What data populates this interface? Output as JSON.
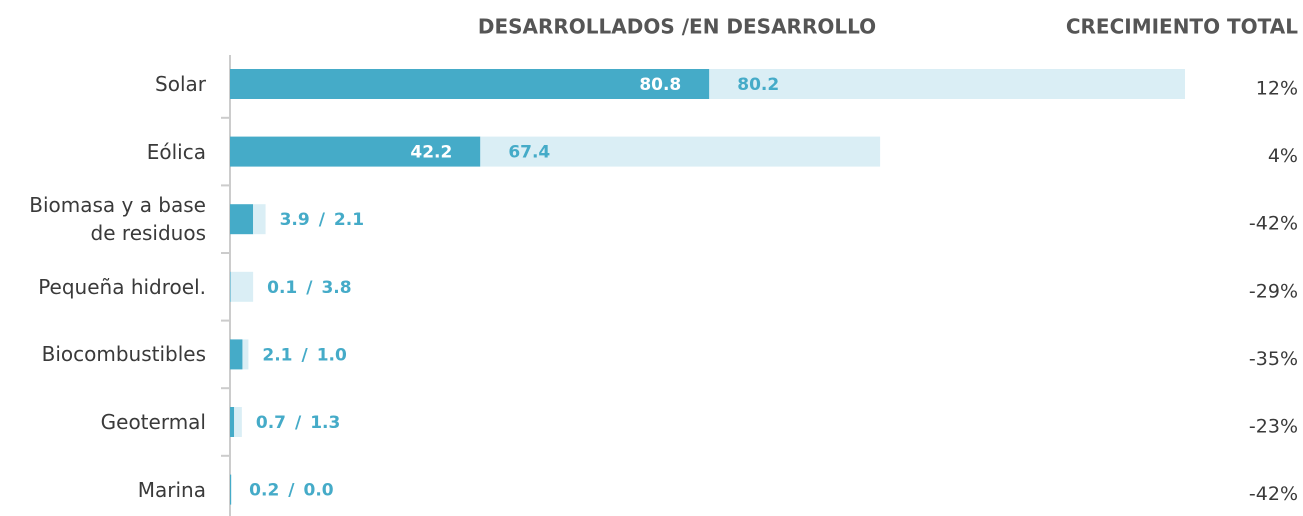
{
  "chart_data": {
    "type": "stacked-bar-horizontal",
    "title": "DESARROLLADOS /EN DESARROLLO",
    "categories": [
      "Solar",
      "Eólica",
      "Biomasa y a base de residuos",
      "Pequeña hidroel.",
      "Biocombustibles",
      "Geotermal",
      "Marina"
    ],
    "series": [
      {
        "name": "DESARROLLADOS",
        "color": "#45abc8",
        "values": [
          80.8,
          42.2,
          3.9,
          0.1,
          2.1,
          0.7,
          0.2
        ],
        "value_labels": [
          "80.8",
          "42.2",
          "3.9",
          "0.1",
          "2.1",
          "0.7",
          "0.2"
        ]
      },
      {
        "name": "EN DESARROLLO",
        "color": "#daeef5",
        "values": [
          80.2,
          67.4,
          2.1,
          3.8,
          1.0,
          1.3,
          0.0
        ],
        "value_labels": [
          "80.2",
          "67.4",
          "2.1",
          "3.8",
          "1.0",
          "1.3",
          "0.0"
        ]
      }
    ],
    "label_separator": "/",
    "xlim": [
      0,
      161
    ],
    "growth_column": {
      "title": "CRECIMIENTO TOTAL",
      "values": [
        "12%",
        "4%",
        "-42%",
        "-29%",
        "-35%",
        "-23%",
        "-42%"
      ]
    }
  }
}
